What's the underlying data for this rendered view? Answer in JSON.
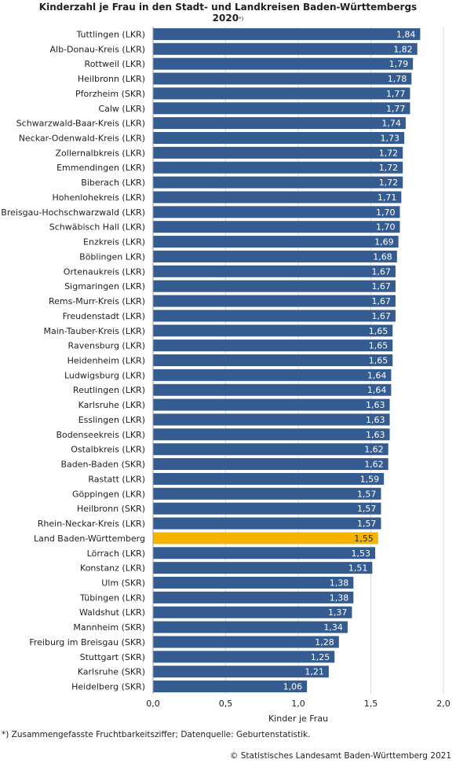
{
  "title_main": "Kinderzahl je Frau in den Stadt- und Landkreisen Baden-Württembergs",
  "title_year": "2020",
  "title_marker": "*)",
  "footnote": "*) Zusammengefasste Fruchtbarkeitsziffer; Datenquelle: Geburtenstatistik.",
  "source": "© Statistisches Landesamt Baden-Württemberg 2021",
  "colors": {
    "bar": "#355c91",
    "highlight": "#f4b400",
    "grid": "#d9d9d9",
    "label_on_bar": "#ffffff"
  },
  "chart_data": {
    "type": "bar",
    "orientation": "horizontal",
    "xlabel": "Kinder je Frau",
    "xlim": [
      0,
      2
    ],
    "xticks": [
      "0,0",
      "0,5",
      "1,0",
      "1,5",
      "2,0"
    ],
    "grid": "vertical",
    "highlight_category": "Land Baden-Württemberg",
    "categories": [
      "Tuttlingen (LKR)",
      "Alb-Donau-Kreis (LKR)",
      "Rottweil (LKR)",
      "Heilbronn (LKR)",
      "Pforzheim (SKR)",
      "Calw (LKR)",
      "Schwarzwald-Baar-Kreis (LKR)",
      "Neckar-Odenwald-Kreis (LKR)",
      "Zollernalbkreis (LKR)",
      "Emmendingen (LKR)",
      "Biberach (LKR)",
      "Hohenlohekreis (LKR)",
      "Breisgau-Hochschwarzwald (LKR)",
      "Schwäbisch Hall (LKR)",
      "Enzkreis (LKR)",
      "Böblingen LKR)",
      "Ortenaukreis (LKR)",
      "Sigmaringen (LKR)",
      "Rems-Murr-Kreis  (LKR)",
      "Freudenstadt (LKR)",
      "Main-Tauber-Kreis (LKR)",
      "Ravensburg (LKR)",
      "Heidenheim (LKR)",
      "Ludwigsburg (LKR)",
      "Reutlingen (LKR)",
      "Karlsruhe (LKR)",
      "Esslingen (LKR)",
      "Bodenseekreis (LKR)",
      "Ostalbkreis (LKR)",
      "Baden-Baden (SKR)",
      "Rastatt (LKR)",
      "Göppingen (LKR)",
      "Heilbronn (SKR)",
      "Rhein-Neckar-Kreis (LKR)",
      "Land Baden-Württemberg",
      "Lörrach (LKR)",
      "Konstanz (LKR)",
      "Ulm (SKR)",
      "Tübingen (LKR)",
      "Waldshut (LKR)",
      "Mannheim (SKR)",
      "Freiburg im Breisgau (SKR)",
      "Stuttgart (SKR)",
      "Karlsruhe (SKR)",
      "Heidelberg (SKR)"
    ],
    "values": [
      1.84,
      1.82,
      1.79,
      1.78,
      1.77,
      1.77,
      1.74,
      1.73,
      1.72,
      1.72,
      1.72,
      1.71,
      1.7,
      1.7,
      1.69,
      1.68,
      1.67,
      1.67,
      1.67,
      1.67,
      1.65,
      1.65,
      1.65,
      1.64,
      1.64,
      1.63,
      1.63,
      1.63,
      1.62,
      1.62,
      1.59,
      1.57,
      1.57,
      1.57,
      1.55,
      1.53,
      1.51,
      1.38,
      1.38,
      1.37,
      1.34,
      1.28,
      1.25,
      1.21,
      1.06
    ],
    "value_labels": [
      "1,84",
      "1,82",
      "1,79",
      "1,78",
      "1,77",
      "1,77",
      "1,74",
      "1,73",
      "1,72",
      "1,72",
      "1,72",
      "1,71",
      "1,70",
      "1,70",
      "1,69",
      "1,68",
      "1,67",
      "1,67",
      "1,67",
      "1,67",
      "1,65",
      "1,65",
      "1,65",
      "1,64",
      "1,64",
      "1,63",
      "1,63",
      "1,63",
      "1,62",
      "1,62",
      "1,59",
      "1,57",
      "1,57",
      "1,57",
      "1,55",
      "1,53",
      "1,51",
      "1,38",
      "1,38",
      "1,37",
      "1,34",
      "1,28",
      "1,25",
      "1,21",
      "1,06"
    ]
  }
}
